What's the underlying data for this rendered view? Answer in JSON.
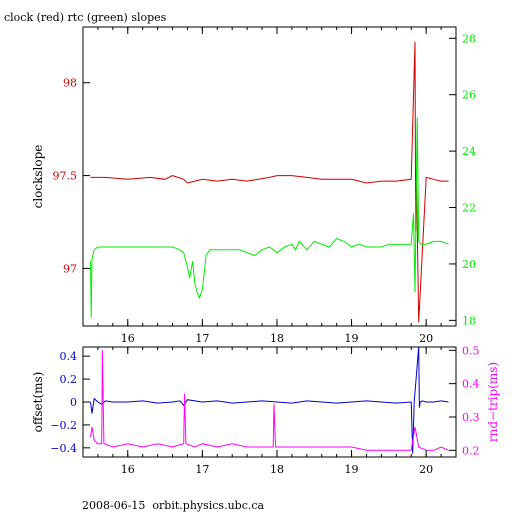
{
  "title": "clock (red) rtc (green) slopes",
  "footer": "2008-06-15  orbit.physics.ubc.ca",
  "colors": {
    "clock": "#cc0000",
    "rtc": "#00ee00",
    "offset": "#0000cc",
    "rndtrip": "#ff00ff",
    "frame": "#000000"
  },
  "chart_data": [
    {
      "type": "line",
      "xlim": [
        15.4,
        20.4
      ],
      "x_ticks": [
        "16",
        "17",
        "18",
        "19",
        "20"
      ],
      "x_ticks_values": [
        16,
        17,
        18,
        19,
        20
      ],
      "grid": false,
      "left_axis": {
        "label": "clockslope",
        "ylim": [
          96.69,
          98.3
        ],
        "ticks": [
          "97",
          "97.5",
          "98"
        ],
        "ticks_values": [
          97,
          97.5,
          98
        ],
        "color": "#cc0000"
      },
      "right_axis": {
        "label": "",
        "ylim": [
          17.8,
          28.4
        ],
        "ticks": [
          "18",
          "20",
          "22",
          "24",
          "26",
          "28"
        ],
        "ticks_values": [
          18,
          20,
          22,
          24,
          26,
          28
        ],
        "color": "#00ee00"
      },
      "series": [
        {
          "name": "clock",
          "axis": "left",
          "x": [
            15.5,
            15.7,
            16.0,
            16.3,
            16.5,
            16.6,
            16.75,
            16.8,
            16.9,
            17.0,
            17.2,
            17.4,
            17.6,
            17.9,
            18.0,
            18.2,
            18.4,
            18.6,
            18.8,
            19.0,
            19.2,
            19.4,
            19.6,
            19.8,
            19.85,
            19.86,
            19.87,
            19.9,
            20.0,
            20.1,
            20.2,
            20.3
          ],
          "values": [
            97.49,
            97.49,
            97.48,
            97.49,
            97.48,
            97.5,
            97.48,
            97.46,
            97.47,
            97.48,
            97.47,
            97.48,
            97.47,
            97.49,
            97.5,
            97.5,
            97.49,
            97.48,
            97.48,
            97.48,
            97.46,
            97.47,
            97.47,
            97.48,
            98.22,
            97.2,
            97.48,
            96.71,
            97.49,
            97.48,
            97.47,
            97.47
          ]
        },
        {
          "name": "rtc",
          "axis": "right",
          "x": [
            15.5,
            15.51,
            15.52,
            15.55,
            15.6,
            15.8,
            16.0,
            16.2,
            16.4,
            16.6,
            16.7,
            16.75,
            16.8,
            16.83,
            16.87,
            16.9,
            16.93,
            16.96,
            17.0,
            17.05,
            17.1,
            17.3,
            17.5,
            17.7,
            17.8,
            17.9,
            18.0,
            18.1,
            18.2,
            18.25,
            18.3,
            18.4,
            18.5,
            18.6,
            18.7,
            18.8,
            18.9,
            19.0,
            19.1,
            19.2,
            19.3,
            19.4,
            19.5,
            19.6,
            19.7,
            19.8,
            19.83,
            19.85,
            19.88,
            19.9,
            19.93,
            19.96,
            20.0,
            20.1,
            20.2,
            20.3
          ],
          "values": [
            20.1,
            18.1,
            20.2,
            20.5,
            20.6,
            20.6,
            20.6,
            20.6,
            20.6,
            20.6,
            20.5,
            20.4,
            19.9,
            19.5,
            20.1,
            19.3,
            19.0,
            18.8,
            19.1,
            20.3,
            20.5,
            20.5,
            20.5,
            20.3,
            20.5,
            20.6,
            20.4,
            20.6,
            20.7,
            20.5,
            20.8,
            20.5,
            20.8,
            20.7,
            20.6,
            20.9,
            20.8,
            20.6,
            20.7,
            20.6,
            20.6,
            20.6,
            20.7,
            20.7,
            20.7,
            20.7,
            21.8,
            19.0,
            25.2,
            20.8,
            20.7,
            20.7,
            20.7,
            20.8,
            20.8,
            20.7
          ]
        }
      ]
    },
    {
      "type": "line",
      "xlim": [
        15.4,
        20.4
      ],
      "x_ticks": [
        "16",
        "17",
        "18",
        "19",
        "20"
      ],
      "x_ticks_values": [
        16,
        17,
        18,
        19,
        20
      ],
      "grid": false,
      "left_axis": {
        "label": "offset(ms)",
        "ylim": [
          -0.48,
          0.48
        ],
        "ticks": [
          "0.4",
          "0.2",
          "0",
          "−0.2",
          "−0.4"
        ],
        "ticks_values": [
          0.4,
          0.2,
          0,
          -0.2,
          -0.4
        ],
        "color": "#0000cc"
      },
      "right_axis": {
        "label": "rnd−trip(ms)",
        "ylim": [
          0.18,
          0.51
        ],
        "ticks": [
          "0.5",
          "0.4",
          "0.3",
          "0.2"
        ],
        "ticks_values": [
          0.5,
          0.4,
          0.3,
          0.2
        ],
        "color": "#ff00ff"
      },
      "series": [
        {
          "name": "offset",
          "axis": "left",
          "x": [
            15.5,
            15.52,
            15.55,
            15.6,
            15.65,
            15.7,
            15.8,
            16.0,
            16.2,
            16.4,
            16.6,
            16.7,
            16.75,
            16.8,
            17.0,
            17.2,
            17.4,
            17.6,
            17.8,
            18.0,
            18.2,
            18.4,
            18.6,
            18.8,
            19.0,
            19.2,
            19.4,
            19.6,
            19.8,
            19.82,
            19.84,
            19.9,
            19.91,
            19.92,
            19.95,
            20.0,
            20.1,
            20.2,
            20.3
          ],
          "values": [
            0.0,
            -0.1,
            0.03,
            0.0,
            -0.02,
            0.01,
            0.0,
            0.0,
            0.01,
            -0.01,
            0.0,
            0.01,
            -0.03,
            0.02,
            0.0,
            0.01,
            -0.01,
            0.0,
            0.01,
            0.0,
            -0.01,
            0.01,
            0.0,
            -0.01,
            0.0,
            0.01,
            0.0,
            -0.01,
            0.0,
            -0.45,
            0.0,
            0.48,
            -0.05,
            0.0,
            0.01,
            0.0,
            0.0,
            0.01,
            0.0
          ]
        },
        {
          "name": "rnd-trip",
          "axis": "right",
          "x": [
            15.5,
            15.52,
            15.55,
            15.6,
            15.65,
            15.66,
            15.68,
            15.8,
            16.0,
            16.2,
            16.4,
            16.6,
            16.75,
            16.76,
            16.78,
            16.9,
            17.0,
            17.2,
            17.4,
            17.6,
            17.8,
            17.95,
            17.96,
            17.98,
            18.1,
            18.3,
            18.5,
            18.7,
            18.9,
            19.0,
            19.2,
            19.4,
            19.6,
            19.8,
            19.85,
            19.9,
            20.0,
            20.1,
            20.2,
            20.3
          ],
          "values": [
            0.24,
            0.27,
            0.23,
            0.22,
            0.22,
            0.5,
            0.22,
            0.21,
            0.22,
            0.21,
            0.22,
            0.21,
            0.22,
            0.37,
            0.22,
            0.21,
            0.22,
            0.21,
            0.22,
            0.21,
            0.21,
            0.21,
            0.34,
            0.21,
            0.21,
            0.21,
            0.21,
            0.21,
            0.21,
            0.21,
            0.2,
            0.2,
            0.2,
            0.2,
            0.27,
            0.21,
            0.2,
            0.2,
            0.21,
            0.2
          ]
        }
      ]
    }
  ]
}
